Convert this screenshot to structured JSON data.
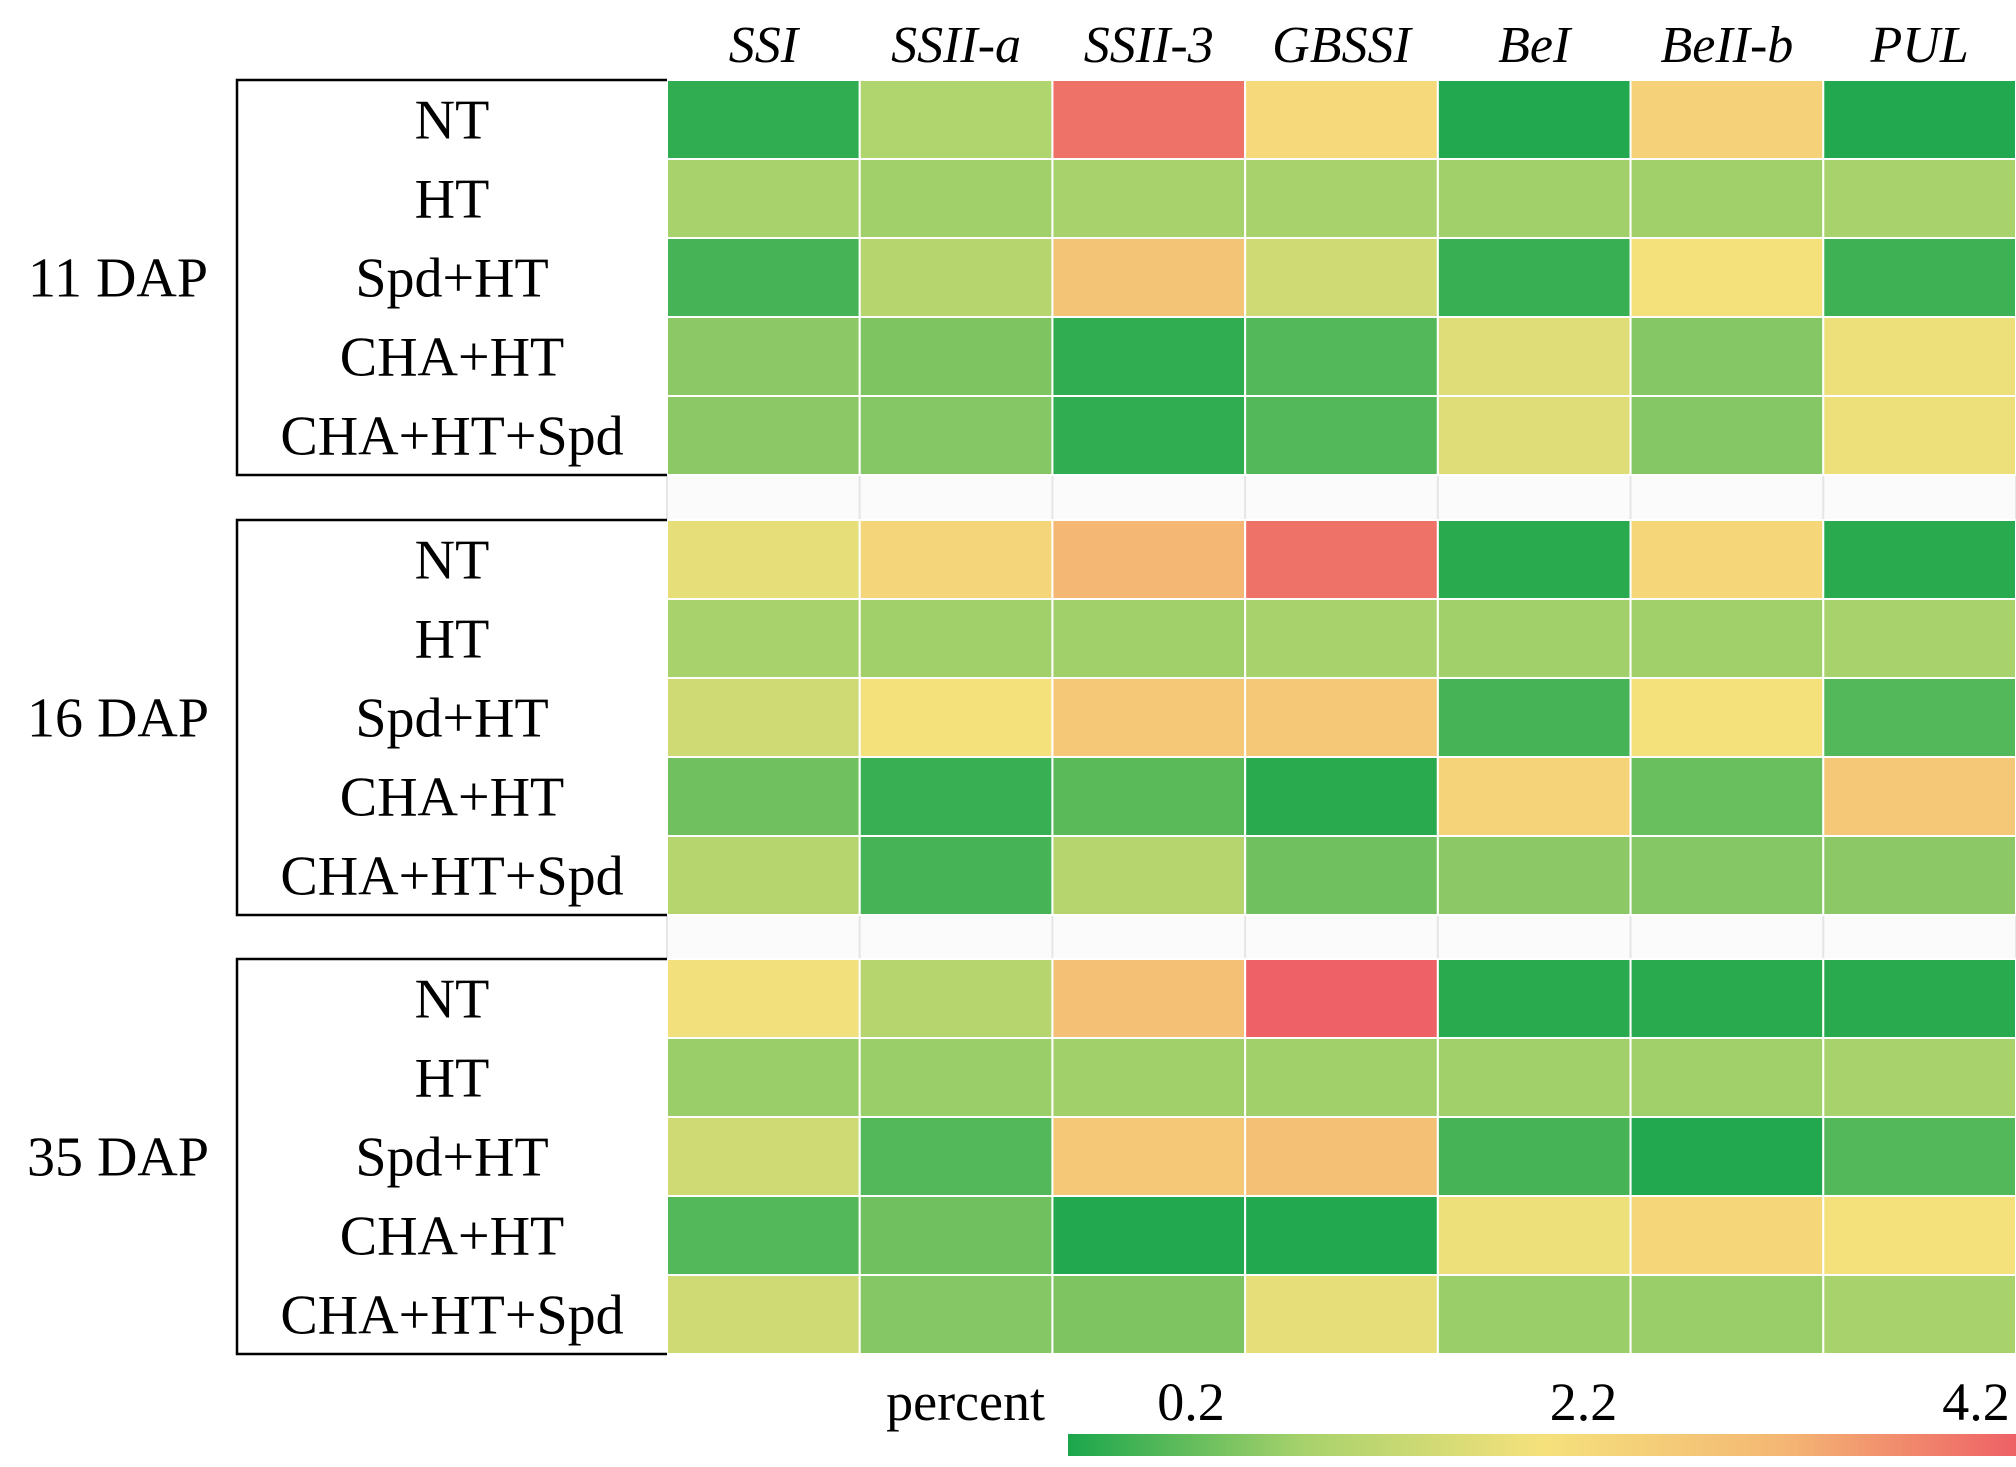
{
  "chart_data": {
    "type": "heatmap",
    "title": "",
    "columns": [
      "SSI",
      "SSII-a",
      "SSII-3",
      "GBSSI",
      "BeI",
      "BeII-b",
      "PUL"
    ],
    "treatments": [
      "NT",
      "HT",
      "Spd+HT",
      "CHA+HT",
      "CHA+HT+Spd"
    ],
    "groups": [
      {
        "name": "11 DAP",
        "values": [
          [
            0.35,
            1.3,
            4.0,
            2.4,
            0.25,
            2.6,
            0.25
          ],
          [
            1.2,
            1.15,
            1.2,
            1.2,
            1.15,
            1.15,
            1.2
          ],
          [
            0.5,
            1.4,
            2.9,
            1.7,
            0.4,
            2.2,
            0.45
          ],
          [
            1.0,
            0.9,
            0.35,
            0.6,
            1.9,
            0.95,
            2.1
          ],
          [
            1.0,
            0.95,
            0.35,
            0.6,
            1.9,
            0.95,
            2.1
          ]
        ]
      },
      {
        "name": "16 DAP",
        "values": [
          [
            2.0,
            2.5,
            3.2,
            4.0,
            0.3,
            2.45,
            0.3
          ],
          [
            1.2,
            1.15,
            1.15,
            1.2,
            1.15,
            1.15,
            1.2
          ],
          [
            1.7,
            2.2,
            2.8,
            2.8,
            0.5,
            2.2,
            0.6
          ],
          [
            0.8,
            0.4,
            0.65,
            0.3,
            2.55,
            0.75,
            2.8
          ],
          [
            1.4,
            0.5,
            1.4,
            0.8,
            1.0,
            0.95,
            1.0
          ]
        ]
      },
      {
        "name": "35 DAP",
        "values": [
          [
            2.15,
            1.4,
            3.0,
            4.2,
            0.3,
            0.3,
            0.3
          ],
          [
            1.1,
            1.1,
            1.15,
            1.15,
            1.15,
            1.15,
            1.2
          ],
          [
            1.7,
            0.6,
            2.8,
            3.0,
            0.5,
            0.25,
            0.6
          ],
          [
            0.6,
            0.8,
            0.25,
            0.25,
            2.1,
            2.45,
            2.2
          ],
          [
            1.7,
            0.95,
            0.9,
            2.0,
            1.1,
            1.1,
            1.2
          ]
        ]
      }
    ],
    "colorbar": {
      "label": "percent",
      "ticks": [
        "0.2",
        "2.2",
        "4.2"
      ],
      "range": [
        0.2,
        4.2
      ],
      "colors": [
        "#1ba64c",
        "#a8d26c",
        "#f5e17c",
        "#f4b874",
        "#ee6166"
      ]
    }
  }
}
